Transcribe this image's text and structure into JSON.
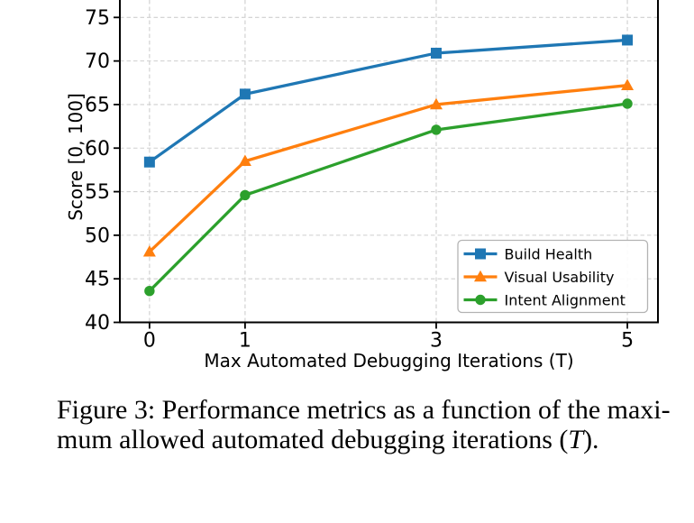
{
  "figure": {
    "caption_line1": "Figure 3: Performance metrics as a function of the maxi-",
    "caption_line2_prefix": "mum allowed automated debugging iterations (",
    "caption_line2_var": "T",
    "caption_line2_suffix": ")."
  },
  "chart_data": {
    "type": "line",
    "x": [
      0,
      1,
      3,
      5
    ],
    "series": [
      {
        "name": "Build Health",
        "color": "#1f77b4",
        "marker": "square",
        "values": [
          58.4,
          66.2,
          70.9,
          72.4
        ]
      },
      {
        "name": "Visual Usability",
        "color": "#ff7f0e",
        "marker": "triangle",
        "values": [
          48.1,
          58.5,
          65.0,
          67.2
        ]
      },
      {
        "name": "Intent Alignment",
        "color": "#2ca02c",
        "marker": "circle",
        "values": [
          43.6,
          54.6,
          62.1,
          65.1
        ]
      }
    ],
    "xlabel": "Max Automated Debugging Iterations (T)",
    "ylabel": "Score [0, 100]",
    "xticks": [
      {
        "v": 0,
        "label": "0"
      },
      {
        "v": 1,
        "label": "1"
      },
      {
        "v": 3,
        "label": "3"
      },
      {
        "v": 5,
        "label": "5"
      }
    ],
    "yticks": [
      {
        "v": 40,
        "label": "40"
      },
      {
        "v": 45,
        "label": "45"
      },
      {
        "v": 50,
        "label": "50"
      },
      {
        "v": 55,
        "label": "55"
      },
      {
        "v": 60,
        "label": "60"
      },
      {
        "v": 65,
        "label": "65"
      },
      {
        "v": 70,
        "label": "70"
      },
      {
        "v": 75,
        "label": "75"
      }
    ],
    "xlim": [
      -0.31,
      5.32
    ],
    "ylim": [
      40,
      77
    ],
    "grid": true,
    "legend_location": "lower right",
    "axis_color": "#000000",
    "grid_color": "#cfcfcf"
  }
}
